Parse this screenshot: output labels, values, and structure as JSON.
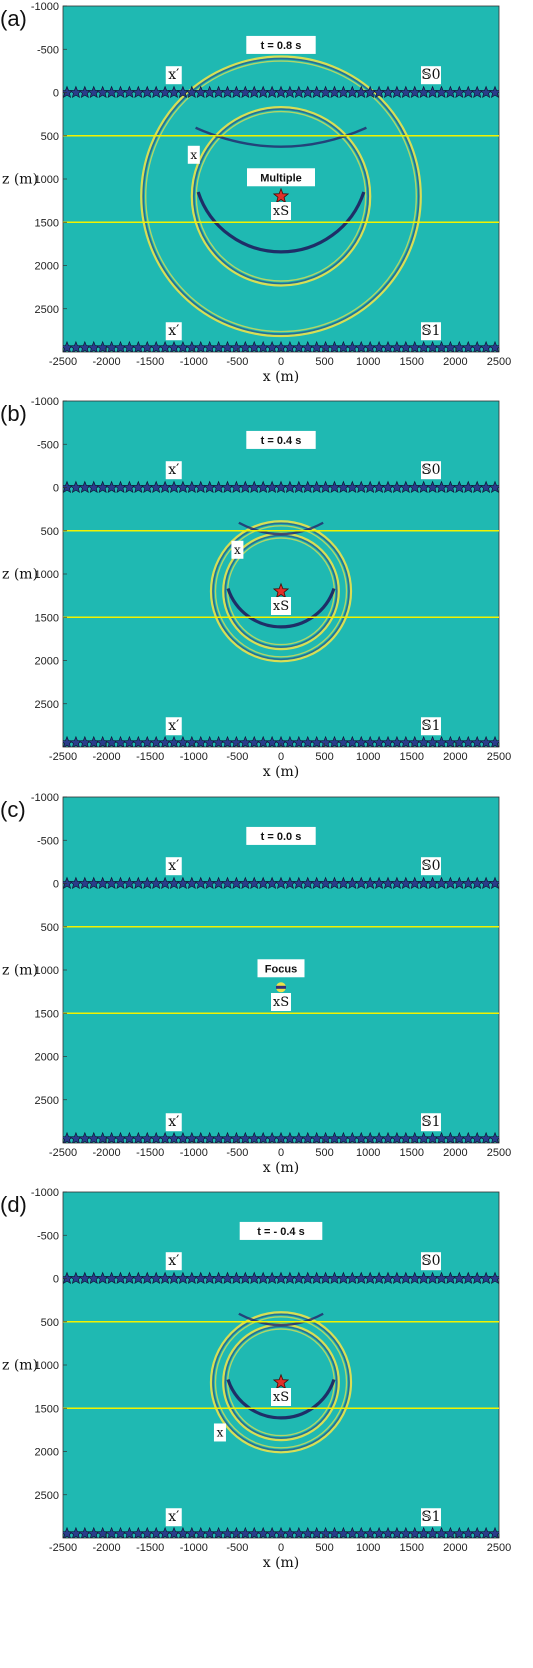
{
  "figure": {
    "x_axis_label": "x (m)",
    "z_axis_label": "z (m)",
    "x_ticks": [
      "-2500",
      "-2000",
      "-1500",
      "-1000",
      "-500",
      "0",
      "500",
      "1000",
      "1500",
      "2000",
      "2500"
    ],
    "z_ticks": [
      "-1000",
      "-500",
      "0",
      "500",
      "1000",
      "1500",
      "2000",
      "2500"
    ],
    "colors": {
      "background": "#1fb9b2",
      "layer": "#f2f200",
      "wave_dark": "#2e2f7c",
      "wave_light": "#ece24a",
      "star_fill": "#2a3c8a",
      "source_star": "#e0302a"
    },
    "surface_S0": "𝕊0",
    "surface_S1": "𝕊1",
    "receiver_label": "x′",
    "source_label": "xS",
    "point_label": "x"
  },
  "panels": [
    {
      "letter": "(a)",
      "time_label": "t = 0.8 s",
      "annotation": "Multiple",
      "show_source_star": true,
      "focus_marker": false,
      "x_marker": [
        -1000,
        720
      ]
    },
    {
      "letter": "(b)",
      "time_label": "t = 0.4 s",
      "annotation": "",
      "show_source_star": true,
      "focus_marker": false,
      "x_marker": [
        -500,
        720
      ]
    },
    {
      "letter": "(c)",
      "time_label": "t = 0.0 s",
      "annotation": "Focus",
      "show_source_star": false,
      "focus_marker": true,
      "x_marker": null
    },
    {
      "letter": "(d)",
      "time_label": "t = - 0.4 s",
      "annotation": "",
      "show_source_star": true,
      "focus_marker": false,
      "x_marker": [
        -700,
        1780
      ]
    }
  ],
  "chart_data": {
    "type": "other",
    "description_axes": {
      "x_range": [
        -2500,
        2500
      ],
      "z_range": [
        -1000,
        3000
      ],
      "z_reversed": true
    },
    "layers_z": [
      500,
      1500
    ],
    "source_position": [
      0,
      1200
    ],
    "receiver_arrays_z": [
      0,
      2950
    ],
    "panels": [
      {
        "t": 0.8,
        "ring_radii": [
          1580,
          1000
        ]
      },
      {
        "t": 0.4,
        "ring_radii": [
          780,
          640
        ]
      },
      {
        "t": 0.0,
        "ring_radii": []
      },
      {
        "t": -0.4,
        "ring_radii": [
          780,
          640
        ]
      }
    ]
  }
}
